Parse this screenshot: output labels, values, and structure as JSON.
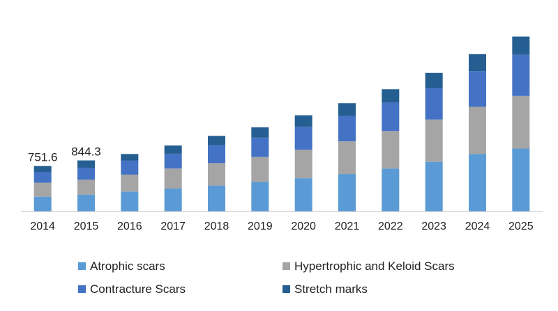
{
  "chart_data": {
    "type": "bar",
    "stacked": true,
    "categories": [
      "2014",
      "2015",
      "2016",
      "2017",
      "2018",
      "2019",
      "2020",
      "2021",
      "2022",
      "2023",
      "2024",
      "2025"
    ],
    "series": [
      {
        "name": "Atrophic scars",
        "color": "#5B9BD5",
        "values": [
          245,
          280,
          330,
          380,
          430,
          490,
          550,
          620,
          710,
          820,
          950,
          1040
        ]
      },
      {
        "name": "Hypertrophic and Keloid Scars",
        "color": "#A5A5A5",
        "values": [
          230,
          245,
          280,
          330,
          370,
          410,
          470,
          540,
          620,
          700,
          780,
          870
        ]
      },
      {
        "name": "Contracture Scars",
        "color": "#4472C4",
        "values": [
          175,
          195,
          230,
          245,
          295,
          320,
          380,
          420,
          470,
          520,
          590,
          680
        ]
      },
      {
        "name": "Stretch marks",
        "color": "#255E91",
        "values": [
          101.6,
          124.3,
          110,
          135,
          155,
          170,
          190,
          210,
          220,
          250,
          280,
          300
        ]
      }
    ],
    "data_labels": [
      {
        "category": "2014",
        "text": "751.6"
      },
      {
        "category": "2015",
        "text": "844.3"
      }
    ],
    "title": "",
    "xlabel": "",
    "ylabel": "",
    "ylim": [
      0,
      3000
    ],
    "y_axis_visible": false,
    "grid": false,
    "legend_position": "bottom"
  }
}
